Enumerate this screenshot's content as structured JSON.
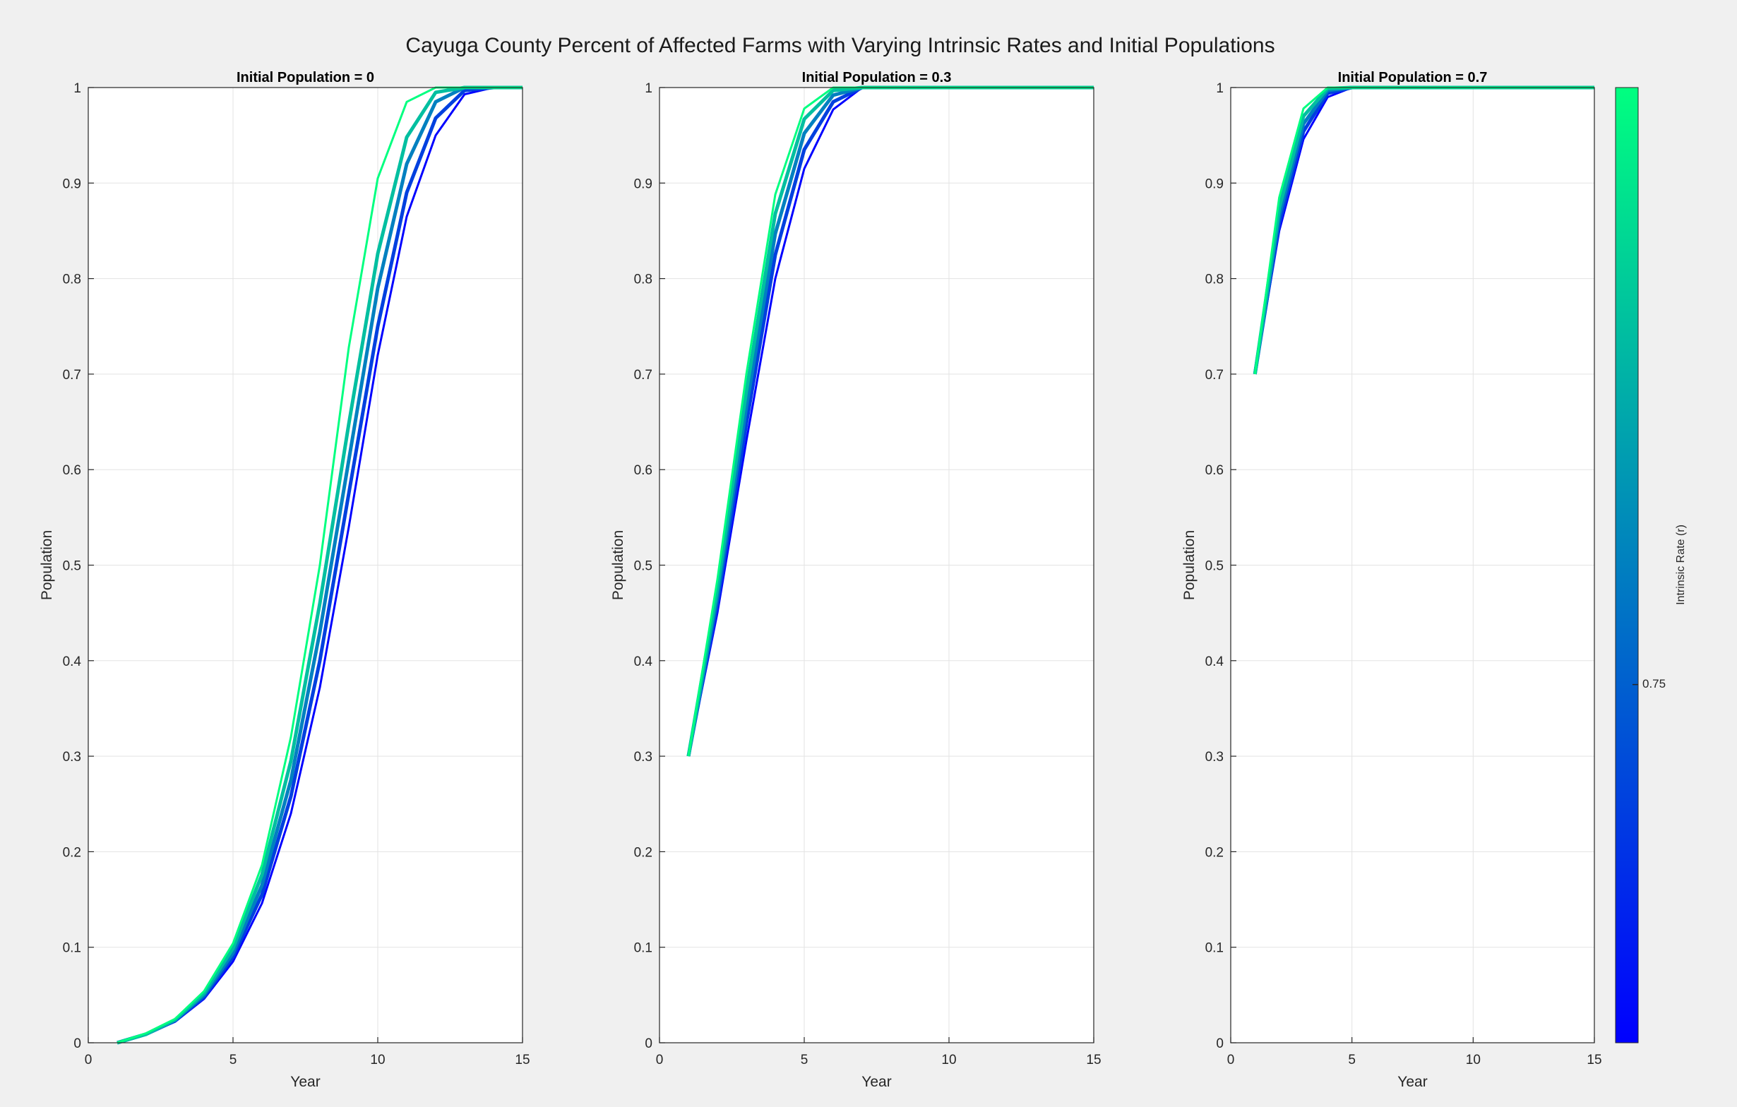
{
  "figure_title": "Cayuga County Percent of Affected Farms with Varying Intrinsic Rates and Initial Populations",
  "colorbar": {
    "label": "Intrinsic Rate (r)",
    "tick_label": "0.75",
    "tick_value": 0.75,
    "range": [
      0.735,
      0.775
    ],
    "color_low": "#0000ff",
    "color_high": "#00ff80"
  },
  "chart_data": [
    {
      "type": "line",
      "title": "Initial Population = 0",
      "xlabel": "Year",
      "ylabel": "Population",
      "xlim": [
        0,
        15
      ],
      "ylim": [
        0,
        1
      ],
      "xticks": [
        "0",
        "5",
        "10",
        "15"
      ],
      "yticks": [
        "0",
        "0.1",
        "0.2",
        "0.3",
        "0.4",
        "0.5",
        "0.6",
        "0.7",
        "0.8",
        "0.9",
        "1"
      ],
      "grid": true,
      "x": [
        1,
        2,
        3,
        4,
        5,
        6,
        7,
        8,
        9,
        10,
        11,
        12,
        13,
        14,
        15
      ],
      "series": [
        {
          "values": [
            0,
            0.009,
            0.022,
            0.046,
            0.085,
            0.146,
            0.24,
            0.372,
            0.54,
            0.72,
            0.865,
            0.95,
            0.993,
            1,
            1
          ]
        },
        {
          "values": [
            0,
            0.009,
            0.023,
            0.048,
            0.09,
            0.155,
            0.258,
            0.4,
            0.575,
            0.75,
            0.89,
            0.968,
            0.997,
            1,
            1
          ]
        },
        {
          "values": [
            0,
            0.009,
            0.024,
            0.05,
            0.094,
            0.165,
            0.275,
            0.43,
            0.61,
            0.79,
            0.92,
            0.985,
            1,
            1,
            1
          ]
        },
        {
          "values": [
            0,
            0.009,
            0.024,
            0.052,
            0.099,
            0.176,
            0.295,
            0.46,
            0.648,
            0.826,
            0.948,
            0.995,
            1,
            1,
            1
          ]
        },
        {
          "values": [
            0,
            0.01,
            0.025,
            0.054,
            0.104,
            0.186,
            0.32,
            0.5,
            0.728,
            0.905,
            0.985,
            1,
            1,
            1,
            1
          ]
        }
      ]
    },
    {
      "type": "line",
      "title": "Initial Population = 0.3",
      "xlabel": "Year",
      "ylabel": "Population",
      "xlim": [
        0,
        15
      ],
      "ylim": [
        0,
        1
      ],
      "xticks": [
        "0",
        "5",
        "10",
        "15"
      ],
      "yticks": [
        "0",
        "0.1",
        "0.2",
        "0.3",
        "0.4",
        "0.5",
        "0.6",
        "0.7",
        "0.8",
        "0.9",
        "1"
      ],
      "grid": true,
      "x": [
        1,
        2,
        3,
        4,
        5,
        6,
        7,
        8,
        9,
        10,
        11,
        12,
        13,
        14,
        15
      ],
      "series": [
        {
          "values": [
            0.3,
            0.45,
            0.63,
            0.8,
            0.915,
            0.977,
            1,
            1,
            1,
            1,
            1,
            1,
            1,
            1,
            1
          ]
        },
        {
          "values": [
            0.3,
            0.46,
            0.648,
            0.825,
            0.935,
            0.985,
            1,
            1,
            1,
            1,
            1,
            1,
            1,
            1,
            1
          ]
        },
        {
          "values": [
            0.3,
            0.468,
            0.665,
            0.847,
            0.952,
            0.992,
            1,
            1,
            1,
            1,
            1,
            1,
            1,
            1,
            1
          ]
        },
        {
          "values": [
            0.3,
            0.476,
            0.682,
            0.868,
            0.967,
            0.997,
            1,
            1,
            1,
            1,
            1,
            1,
            1,
            1,
            1
          ]
        },
        {
          "values": [
            0.3,
            0.485,
            0.7,
            0.888,
            0.978,
            1,
            1,
            1,
            1,
            1,
            1,
            1,
            1,
            1,
            1
          ]
        }
      ]
    },
    {
      "type": "line",
      "title": "Initial Population = 0.7",
      "xlabel": "Year",
      "ylabel": "Population",
      "xlim": [
        0,
        15
      ],
      "ylim": [
        0,
        1
      ],
      "xticks": [
        "0",
        "5",
        "10",
        "15"
      ],
      "yticks": [
        "0",
        "0.1",
        "0.2",
        "0.3",
        "0.4",
        "0.5",
        "0.6",
        "0.7",
        "0.8",
        "0.9",
        "1"
      ],
      "grid": true,
      "x": [
        1,
        2,
        3,
        4,
        5,
        6,
        7,
        8,
        9,
        10,
        11,
        12,
        13,
        14,
        15
      ],
      "series": [
        {
          "values": [
            0.7,
            0.85,
            0.946,
            0.99,
            1,
            1,
            1,
            1,
            1,
            1,
            1,
            1,
            1,
            1,
            1
          ]
        },
        {
          "values": [
            0.7,
            0.858,
            0.954,
            0.994,
            1,
            1,
            1,
            1,
            1,
            1,
            1,
            1,
            1,
            1,
            1
          ]
        },
        {
          "values": [
            0.7,
            0.866,
            0.962,
            0.997,
            1,
            1,
            1,
            1,
            1,
            1,
            1,
            1,
            1,
            1,
            1
          ]
        },
        {
          "values": [
            0.7,
            0.874,
            0.97,
            0.999,
            1,
            1,
            1,
            1,
            1,
            1,
            1,
            1,
            1,
            1,
            1
          ]
        },
        {
          "values": [
            0.7,
            0.885,
            0.978,
            1,
            1,
            1,
            1,
            1,
            1,
            1,
            1,
            1,
            1,
            1,
            1
          ]
        }
      ]
    }
  ]
}
